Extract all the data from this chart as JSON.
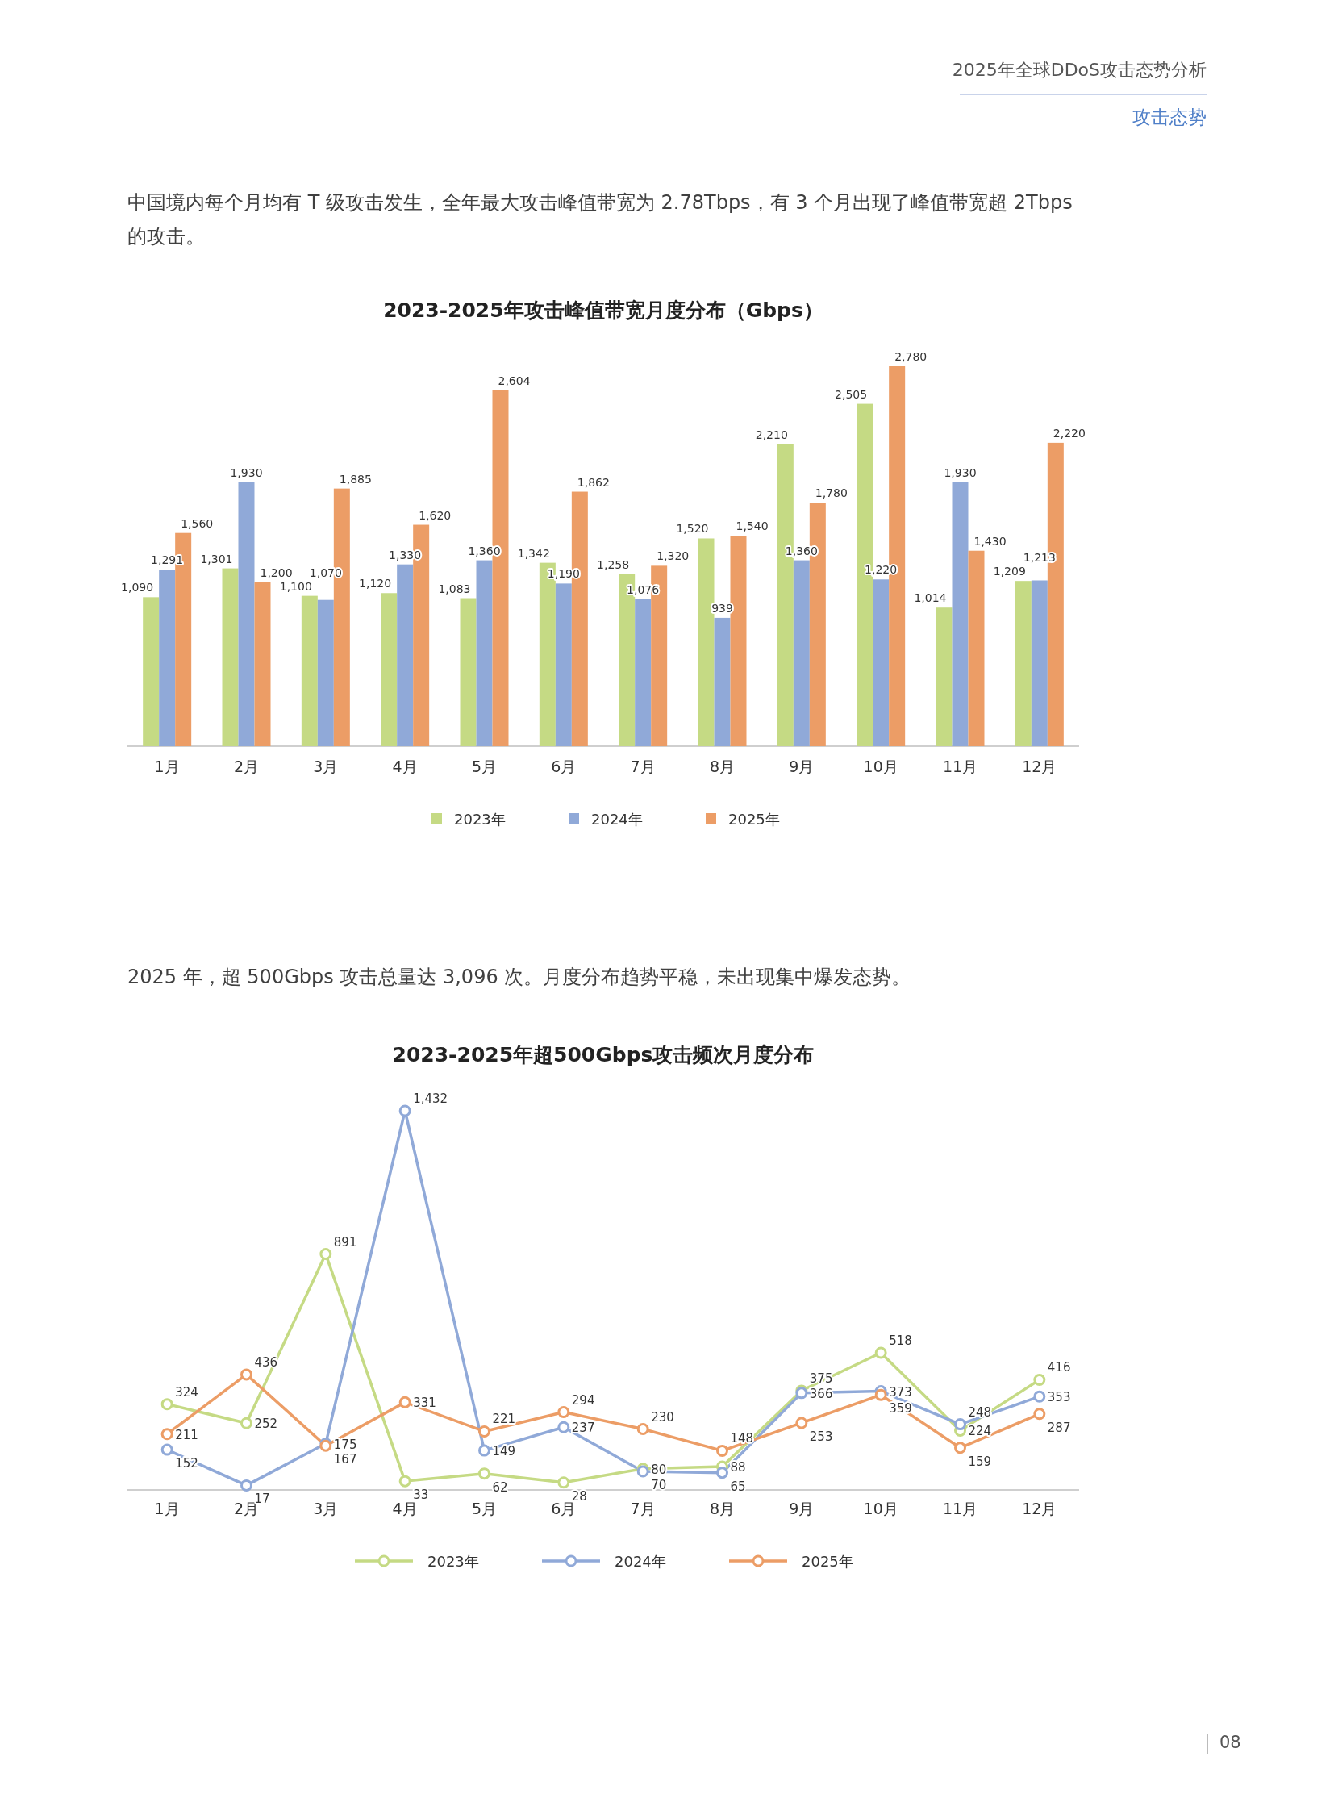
{
  "chart_data": [
    {
      "type": "bar",
      "title": "2023-2025年攻击峰值带宽月度分布（Gbps）",
      "annotations": [
        "2025年全球DDoS攻击态势分析",
        "攻击态势",
        "中国境内每个月均有 T 级攻击发生，全年最大攻击峰值带宽为 2.78Tbps，有 3 个月出现了峰值带宽超 2Tbps 的攻击。"
      ],
      "categories": [
        "1月",
        "2月",
        "3月",
        "4月",
        "5月",
        "6月",
        "7月",
        "8月",
        "9月",
        "10月",
        "11月",
        "12月"
      ],
      "series": [
        {
          "name": "2023年",
          "color": "#c5da84",
          "values": [
            1090,
            1301,
            1100,
            1120,
            1083,
            1342,
            1258,
            1520,
            2210,
            2505,
            1014,
            1209
          ],
          "value_labels": [
            "1,090",
            "1,301",
            "1,100",
            "1,120",
            "1,083",
            "1,342",
            "1,258",
            "1,520",
            "2,210",
            "2,505",
            "1,014",
            "1,209"
          ]
        },
        {
          "name": "2024年",
          "color": "#90a9d8",
          "values": [
            1291,
            1930,
            1070,
            1330,
            1360,
            1190,
            1076,
            939,
            1360,
            1220,
            1930,
            1213
          ],
          "value_labels": [
            "1,291",
            "1,930",
            "1,070",
            "1,330",
            "1,360",
            "1,190",
            "1,076",
            "939",
            "1,360",
            "1,220",
            "1,930",
            "1,213"
          ]
        },
        {
          "name": "2025年",
          "color": "#ec9d66",
          "values": [
            1560,
            1200,
            1885,
            1620,
            2604,
            1862,
            1320,
            1540,
            1780,
            2780,
            1430,
            2220
          ],
          "value_labels": [
            "1,560",
            "1,200",
            "1,885",
            "1,620",
            "2,604",
            "1,862",
            "1,320",
            "1,540",
            "1,780",
            "2,780",
            "1,430",
            "2,220"
          ]
        }
      ],
      "legend": "bottom",
      "grid": false,
      "tick_labels": "x"
    },
    {
      "type": "line",
      "title": "2023-2025年超500Gbps攻击频次月度分布",
      "annotations": [
        "2025 年，超 500Gbps 攻击总量达 3,096 次。月度分布趋势平稳，未出现集中爆发态势。",
        "08"
      ],
      "categories": [
        "1月",
        "2月",
        "3月",
        "4月",
        "5月",
        "6月",
        "7月",
        "8月",
        "9月",
        "10月",
        "11月",
        "12月"
      ],
      "series": [
        {
          "name": "2023年",
          "color": "#c5da84",
          "values": [
            324,
            252,
            891,
            33,
            62,
            28,
            80,
            88,
            375,
            518,
            224,
            416
          ]
        },
        {
          "name": "2024年",
          "color": "#90a9d8",
          "values": [
            152,
            17,
            175,
            1432,
            149,
            237,
            70,
            65,
            366,
            373,
            248,
            353
          ],
          "value_labels": [
            "152",
            "17",
            "175",
            "1,432",
            "149",
            "237",
            "70",
            "65",
            "366",
            "373",
            "248",
            "353"
          ]
        },
        {
          "name": "2025年",
          "color": "#ec9d66",
          "values": [
            211,
            436,
            167,
            331,
            221,
            294,
            230,
            148,
            253,
            359,
            159,
            287
          ]
        }
      ],
      "data_labels": true,
      "legend": "bottom",
      "grid": false,
      "marker": "circle",
      "line_style": "solid",
      "tick_labels": "x"
    }
  ]
}
